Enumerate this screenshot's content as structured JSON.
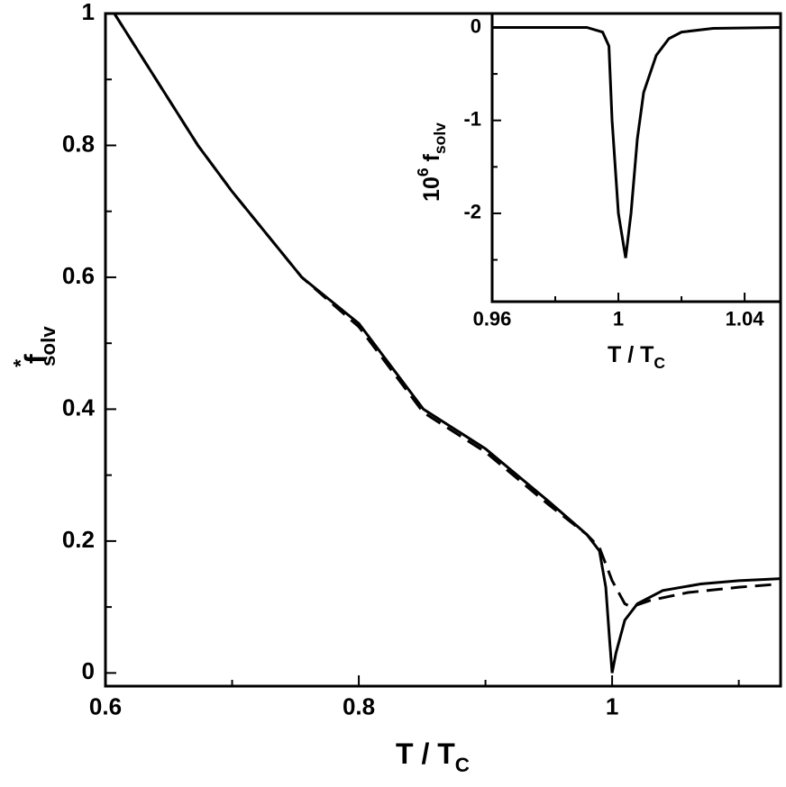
{
  "chart_data": [
    {
      "type": "line",
      "xlabel": {
        "main": "T / T",
        "sub": "C"
      },
      "ylabel": {
        "main": "f",
        "sup": "*",
        "sub": "solv"
      },
      "xlim": [
        0.6,
        1.133
      ],
      "xticks": [
        0.6,
        0.8,
        1
      ],
      "xminorticks": [
        0.7,
        0.9,
        1.1
      ],
      "ylim": [
        -0.02,
        1
      ],
      "yticks": [
        0,
        0.2,
        0.4,
        0.6,
        0.8,
        1
      ],
      "yminorticks": [
        0.1,
        0.3,
        0.5,
        0.7,
        0.9
      ],
      "series": [
        {
          "color": "#000000",
          "dash": false,
          "x": [
            0.607,
            0.64,
            0.673,
            0.7,
            0.755,
            0.8,
            0.851,
            0.9,
            0.95,
            0.98,
            0.99,
            0.995,
            0.998,
            1.0,
            1.003,
            1.01,
            1.02,
            1.04,
            1.07,
            1.1,
            1.133
          ],
          "values": [
            1.0,
            0.9,
            0.8,
            0.73,
            0.6,
            0.53,
            0.4,
            0.34,
            0.26,
            0.21,
            0.185,
            0.13,
            0.05,
            0.0,
            0.03,
            0.08,
            0.105,
            0.125,
            0.135,
            0.14,
            0.143
          ]
        },
        {
          "color": "#000000",
          "dash": true,
          "x": [
            0.607,
            0.64,
            0.673,
            0.7,
            0.755,
            0.8,
            0.851,
            0.9,
            0.95,
            0.98,
            0.99,
            1.0,
            1.01,
            1.015,
            1.03,
            1.06,
            1.1,
            1.133
          ],
          "values": [
            1.0,
            0.9,
            0.8,
            0.73,
            0.6,
            0.525,
            0.395,
            0.335,
            0.255,
            0.21,
            0.19,
            0.14,
            0.105,
            0.1,
            0.11,
            0.122,
            0.13,
            0.135
          ]
        }
      ]
    },
    {
      "type": "line",
      "xlabel": {
        "main": "T / T",
        "sub": "C"
      },
      "ylabel": {
        "main": "10",
        "sup": "6",
        "main2": " f",
        "sub": "solv"
      },
      "xlim": [
        0.96,
        1.0514
      ],
      "xticks": [
        0.96,
        1,
        1.04
      ],
      "xminorticks": [
        0.98,
        1.02
      ],
      "ylim": [
        -2.95,
        0.15
      ],
      "yticks": [
        0,
        -1,
        -2
      ],
      "yminorticks": [
        -0.5,
        -1.5,
        -2.5
      ],
      "series": [
        {
          "color": "#000000",
          "dash": false,
          "x": [
            0.96,
            0.99,
            0.995,
            0.997,
            0.998,
            1.0,
            1.0023,
            1.004,
            1.006,
            1.008,
            1.012,
            1.016,
            1.02,
            1.03,
            1.0514
          ],
          "values": [
            0,
            0,
            -0.05,
            -0.2,
            -1.0,
            -2.0,
            -2.48,
            -2.0,
            -1.2,
            -0.7,
            -0.3,
            -0.12,
            -0.05,
            -0.01,
            0
          ]
        }
      ]
    }
  ]
}
